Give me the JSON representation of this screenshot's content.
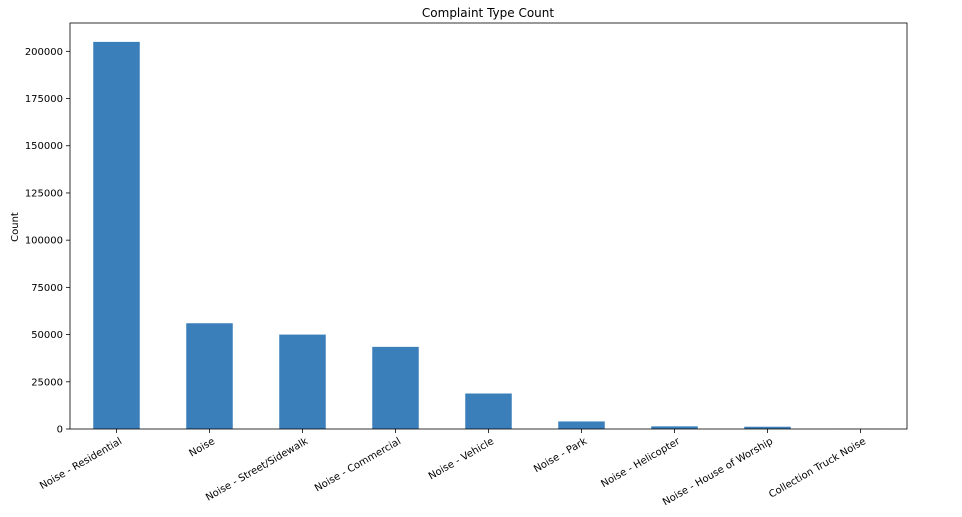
{
  "chart_data": {
    "type": "bar",
    "title": "Complaint Type Count",
    "xlabel": "",
    "ylabel": "Count",
    "categories": [
      "Noise - Residential",
      "Noise",
      "Noise - Street/Sidewalk",
      "Noise - Commercial",
      "Noise - Vehicle",
      "Noise - Park",
      "Noise - Helicopter",
      "Noise - House of Worship",
      "Collection Truck Noise"
    ],
    "values": [
      205000,
      56000,
      50000,
      43500,
      18800,
      4000,
      1400,
      1200,
      50
    ],
    "ylim": [
      0,
      215000
    ],
    "yticks": [
      0,
      25000,
      50000,
      75000,
      100000,
      125000,
      150000,
      175000,
      200000
    ],
    "ytick_labels": [
      "0",
      "25000",
      "50000",
      "75000",
      "100000",
      "125000",
      "150000",
      "175000",
      "200000"
    ],
    "xtick_rotation": "30 degrees",
    "grid": false,
    "legend": "none",
    "bar_color": "#3a7fba"
  }
}
